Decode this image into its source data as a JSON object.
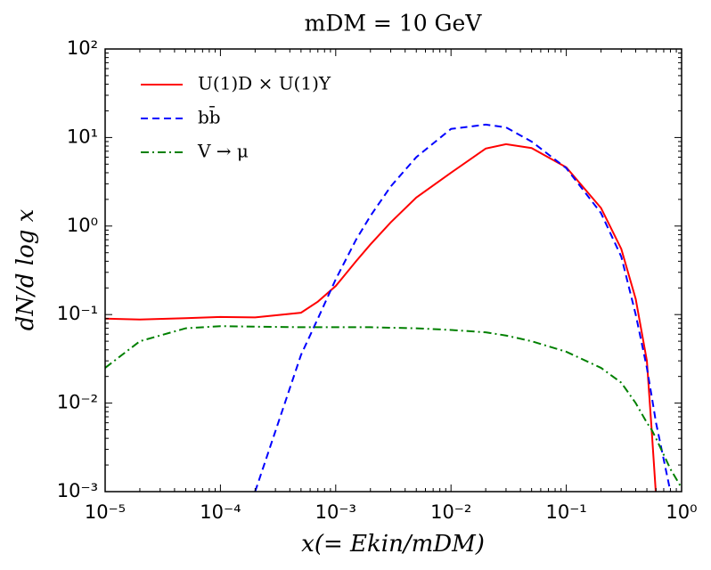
{
  "chart_data": {
    "type": "line",
    "title": "mDM = 10 GeV",
    "x_label": "x(= Ekin/mDM)",
    "y_label": "dN/d log x",
    "x_scale": "log",
    "y_scale": "log",
    "legend_position": "upper left",
    "xlim": [
      1e-05,
      1
    ],
    "ylim": [
      0.001,
      100
    ],
    "xticks": [
      {
        "value": 1e-05,
        "label": "10⁻⁵"
      },
      {
        "value": 0.0001,
        "label": "10⁻⁴"
      },
      {
        "value": 0.001,
        "label": "10⁻³"
      },
      {
        "value": 0.01,
        "label": "10⁻²"
      },
      {
        "value": 0.1,
        "label": "10⁻¹"
      },
      {
        "value": 1,
        "label": "10⁰"
      }
    ],
    "yticks": [
      {
        "value": 0.001,
        "label": "10⁻³"
      },
      {
        "value": 0.01,
        "label": "10⁻²"
      },
      {
        "value": 0.1,
        "label": "10⁻¹"
      },
      {
        "value": 1,
        "label": "10⁰"
      },
      {
        "value": 10,
        "label": "10¹"
      },
      {
        "value": 100,
        "label": "10²"
      }
    ],
    "x": [
      1e-05,
      2e-05,
      5e-05,
      0.0001,
      0.0002,
      0.0005,
      0.0007,
      0.001,
      0.0015,
      0.002,
      0.003,
      0.005,
      0.01,
      0.02,
      0.03,
      0.05,
      0.1,
      0.2,
      0.3,
      0.4,
      0.5,
      0.55,
      0.6,
      0.8,
      1
    ],
    "series": [
      {
        "name": "U(1)D × U(1)Y",
        "color": "#ff0000",
        "dash": "solid",
        "values": [
          0.09,
          0.088,
          0.091,
          0.094,
          0.093,
          0.105,
          0.14,
          0.21,
          0.4,
          0.62,
          1.1,
          2.1,
          4.0,
          7.5,
          8.4,
          7.6,
          4.6,
          1.6,
          0.55,
          0.15,
          0.03,
          0.005,
          0.0009,
          null,
          null
        ]
      },
      {
        "name": "bb̄",
        "color": "#0000ff",
        "dash": "dashed",
        "values": [
          null,
          null,
          null,
          null,
          0.001,
          0.035,
          0.09,
          0.25,
          0.7,
          1.3,
          2.8,
          6,
          12.5,
          14,
          13,
          9,
          4.5,
          1.4,
          0.45,
          0.1,
          0.025,
          0.012,
          0.006,
          0.001,
          null
        ]
      },
      {
        "name": "V → μ",
        "color": "#008000",
        "dash": "dashdot",
        "values": [
          0.025,
          0.05,
          0.07,
          0.074,
          0.073,
          0.072,
          0.072,
          0.072,
          0.072,
          0.072,
          0.071,
          0.07,
          0.067,
          0.063,
          0.058,
          0.05,
          0.038,
          0.025,
          0.017,
          0.01,
          0.006,
          0.005,
          0.004,
          0.0018,
          0.0011
        ]
      }
    ]
  }
}
